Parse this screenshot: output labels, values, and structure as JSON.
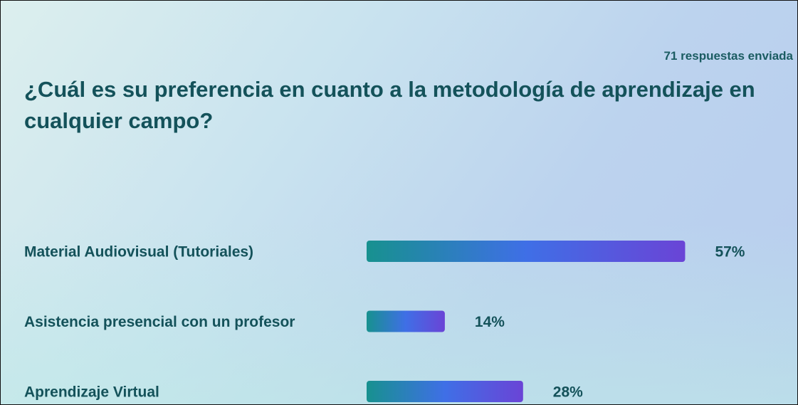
{
  "chart_data": {
    "type": "bar",
    "orientation": "horizontal",
    "title": "¿Cuál es su preferencia en cuanto a la metodología de aprendizaje en cualquier campo?",
    "subtitle": "71 respuestas enviada",
    "categories": [
      "Material Audiovisual (Tutoriales)",
      "Asistencia presencial con un profesor",
      "Aprendizaje Virtual"
    ],
    "values": [
      57,
      14,
      28
    ],
    "value_labels": [
      "57%",
      "14%",
      "28%"
    ],
    "colors": [
      "#17918f",
      "#3f6fe6",
      "#6a44d6"
    ]
  }
}
